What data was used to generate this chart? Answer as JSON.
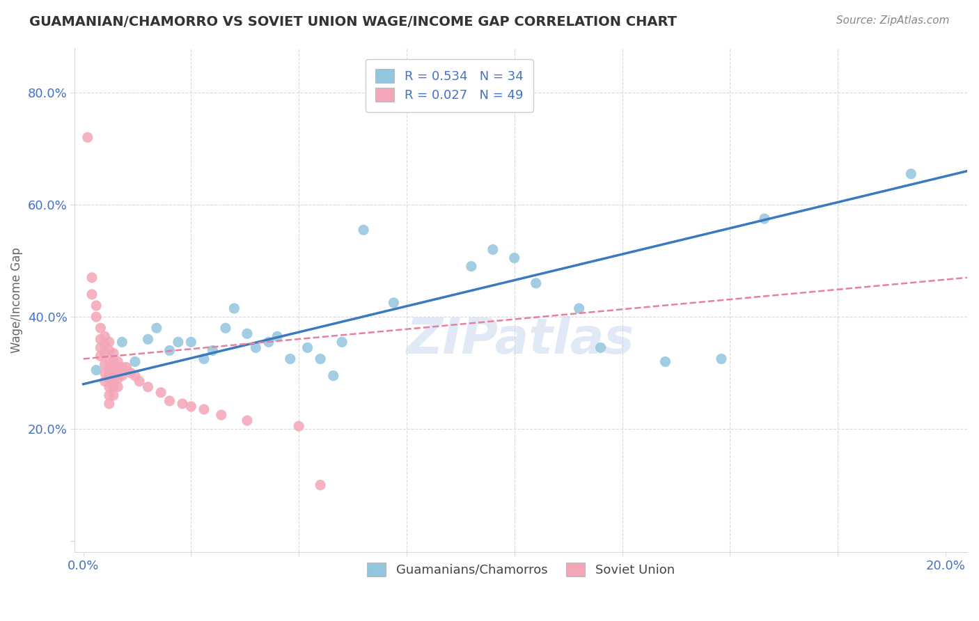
{
  "title": "GUAMANIAN/CHAMORRO VS SOVIET UNION WAGE/INCOME GAP CORRELATION CHART",
  "source": "Source: ZipAtlas.com",
  "ylabel": "Wage/Income Gap",
  "xlim": [
    -0.002,
    0.205
  ],
  "ylim": [
    -0.02,
    0.88
  ],
  "xticks": [
    0.0,
    0.025,
    0.05,
    0.075,
    0.1,
    0.125,
    0.15,
    0.175,
    0.2
  ],
  "xtick_labels": [
    "0.0%",
    "",
    "",
    "",
    "",
    "",
    "",
    "",
    "20.0%"
  ],
  "yticks": [
    0.0,
    0.2,
    0.4,
    0.6,
    0.8
  ],
  "ytick_labels": [
    "",
    "20.0%",
    "40.0%",
    "60.0%",
    "80.0%"
  ],
  "watermark": "ZIPatlas",
  "legend_r1": "R = 0.534",
  "legend_n1": "N = 34",
  "legend_r2": "R = 0.027",
  "legend_n2": "N = 49",
  "blue_color": "#92c5de",
  "pink_color": "#f4a6b8",
  "blue_line_color": "#3a7abf",
  "pink_line_color": "#e87fa0",
  "grid_color": "#d9d9d9",
  "tick_color": "#4472C4",
  "blue_scatter": [
    [
      0.003,
      0.305
    ],
    [
      0.006,
      0.295
    ],
    [
      0.009,
      0.355
    ],
    [
      0.012,
      0.32
    ],
    [
      0.015,
      0.36
    ],
    [
      0.017,
      0.38
    ],
    [
      0.02,
      0.34
    ],
    [
      0.022,
      0.355
    ],
    [
      0.025,
      0.355
    ],
    [
      0.028,
      0.325
    ],
    [
      0.03,
      0.34
    ],
    [
      0.033,
      0.38
    ],
    [
      0.035,
      0.415
    ],
    [
      0.038,
      0.37
    ],
    [
      0.04,
      0.345
    ],
    [
      0.043,
      0.355
    ],
    [
      0.045,
      0.365
    ],
    [
      0.048,
      0.325
    ],
    [
      0.052,
      0.345
    ],
    [
      0.055,
      0.325
    ],
    [
      0.058,
      0.295
    ],
    [
      0.06,
      0.355
    ],
    [
      0.065,
      0.555
    ],
    [
      0.072,
      0.425
    ],
    [
      0.09,
      0.49
    ],
    [
      0.095,
      0.52
    ],
    [
      0.1,
      0.505
    ],
    [
      0.105,
      0.46
    ],
    [
      0.115,
      0.415
    ],
    [
      0.12,
      0.345
    ],
    [
      0.135,
      0.32
    ],
    [
      0.148,
      0.325
    ],
    [
      0.158,
      0.575
    ],
    [
      0.192,
      0.655
    ]
  ],
  "pink_scatter": [
    [
      0.001,
      0.72
    ],
    [
      0.002,
      0.47
    ],
    [
      0.002,
      0.44
    ],
    [
      0.003,
      0.42
    ],
    [
      0.003,
      0.4
    ],
    [
      0.004,
      0.38
    ],
    [
      0.004,
      0.36
    ],
    [
      0.004,
      0.345
    ],
    [
      0.004,
      0.33
    ],
    [
      0.005,
      0.365
    ],
    [
      0.005,
      0.35
    ],
    [
      0.005,
      0.335
    ],
    [
      0.005,
      0.315
    ],
    [
      0.005,
      0.3
    ],
    [
      0.005,
      0.285
    ],
    [
      0.006,
      0.355
    ],
    [
      0.006,
      0.34
    ],
    [
      0.006,
      0.32
    ],
    [
      0.006,
      0.305
    ],
    [
      0.006,
      0.29
    ],
    [
      0.006,
      0.275
    ],
    [
      0.006,
      0.26
    ],
    [
      0.006,
      0.245
    ],
    [
      0.007,
      0.335
    ],
    [
      0.007,
      0.32
    ],
    [
      0.007,
      0.305
    ],
    [
      0.007,
      0.29
    ],
    [
      0.007,
      0.275
    ],
    [
      0.007,
      0.26
    ],
    [
      0.008,
      0.32
    ],
    [
      0.008,
      0.305
    ],
    [
      0.008,
      0.29
    ],
    [
      0.008,
      0.275
    ],
    [
      0.009,
      0.31
    ],
    [
      0.009,
      0.295
    ],
    [
      0.01,
      0.31
    ],
    [
      0.011,
      0.3
    ],
    [
      0.012,
      0.295
    ],
    [
      0.013,
      0.285
    ],
    [
      0.015,
      0.275
    ],
    [
      0.018,
      0.265
    ],
    [
      0.02,
      0.25
    ],
    [
      0.023,
      0.245
    ],
    [
      0.025,
      0.24
    ],
    [
      0.028,
      0.235
    ],
    [
      0.032,
      0.225
    ],
    [
      0.038,
      0.215
    ],
    [
      0.05,
      0.205
    ],
    [
      0.055,
      0.1
    ]
  ],
  "blue_line_x": [
    0.0,
    0.205
  ],
  "blue_line_y": [
    0.28,
    0.66
  ],
  "pink_line_x": [
    0.0,
    0.205
  ],
  "pink_line_y": [
    0.325,
    0.47
  ]
}
